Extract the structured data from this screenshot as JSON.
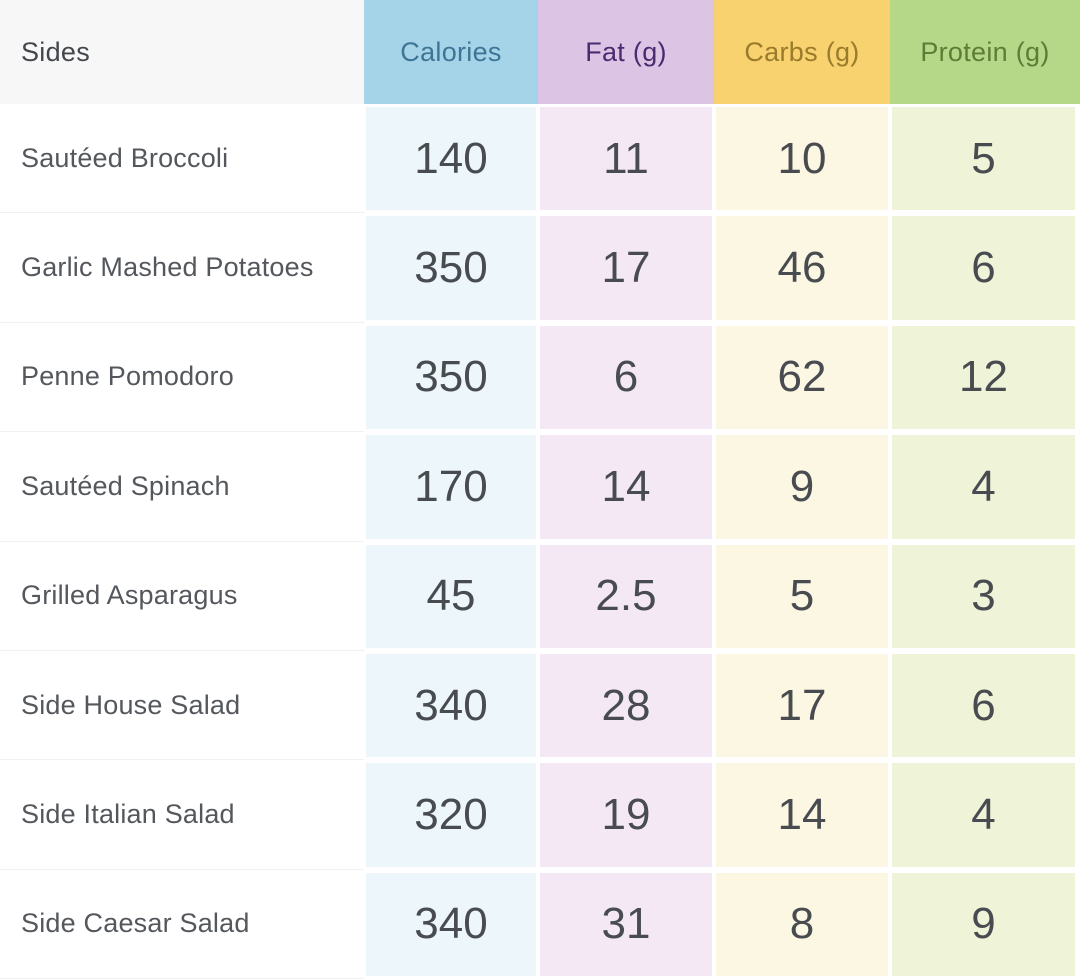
{
  "header": {
    "sides": "Sides",
    "calories": "Calories",
    "fat": "Fat (g)",
    "carbs": "Carbs (g)",
    "protein": "Protein (g)"
  },
  "rows": [
    {
      "name": "Sautéed Broccoli",
      "calories": "140",
      "fat": "11",
      "carbs": "10",
      "protein": "5"
    },
    {
      "name": "Garlic Mashed Potatoes",
      "calories": "350",
      "fat": "17",
      "carbs": "46",
      "protein": "6"
    },
    {
      "name": "Penne Pomodoro",
      "calories": "350",
      "fat": "6",
      "carbs": "62",
      "protein": "12"
    },
    {
      "name": "Sautéed Spinach",
      "calories": "170",
      "fat": "14",
      "carbs": "9",
      "protein": "4"
    },
    {
      "name": "Grilled Asparagus",
      "calories": "45",
      "fat": "2.5",
      "carbs": "5",
      "protein": "3"
    },
    {
      "name": "Side House Salad",
      "calories": "340",
      "fat": "28",
      "carbs": "17",
      "protein": "6"
    },
    {
      "name": "Side Italian Salad",
      "calories": "320",
      "fat": "19",
      "carbs": "14",
      "protein": "4"
    },
    {
      "name": "Side Caesar Salad",
      "calories": "340",
      "fat": "31",
      "carbs": "8",
      "protein": "9"
    }
  ],
  "colors": {
    "header_sides_bg": "#f7f7f8",
    "header_calories_bg": "#a5d3e8",
    "header_calories_text": "#3e7596",
    "header_fat_bg": "#dcc5e4",
    "header_fat_text": "#4b2a70",
    "header_carbs_bg": "#f7d26e",
    "header_carbs_text": "#9a7a2c",
    "header_protein_bg": "#b5d788",
    "header_protein_text": "#5d7c36",
    "cell_calories_bg": "#edf6fa",
    "cell_fat_bg": "#f3e8f4",
    "cell_carbs_bg": "#fcf7e2",
    "cell_protein_bg": "#eff3d7",
    "number_text": "#484c51",
    "name_text": "#54585d"
  },
  "chart_data": {
    "type": "table",
    "title": "Sides",
    "columns": [
      "Sides",
      "Calories",
      "Fat (g)",
      "Carbs (g)",
      "Protein (g)"
    ],
    "rows": [
      [
        "Sautéed Broccoli",
        140,
        11,
        10,
        5
      ],
      [
        "Garlic Mashed Potatoes",
        350,
        17,
        46,
        6
      ],
      [
        "Penne Pomodoro",
        350,
        6,
        62,
        12
      ],
      [
        "Sautéed Spinach",
        170,
        14,
        9,
        4
      ],
      [
        "Grilled Asparagus",
        45,
        2.5,
        5,
        3
      ],
      [
        "Side House Salad",
        340,
        28,
        17,
        6
      ],
      [
        "Side Italian Salad",
        320,
        19,
        14,
        4
      ],
      [
        "Side Caesar Salad",
        340,
        31,
        8,
        9
      ]
    ]
  }
}
